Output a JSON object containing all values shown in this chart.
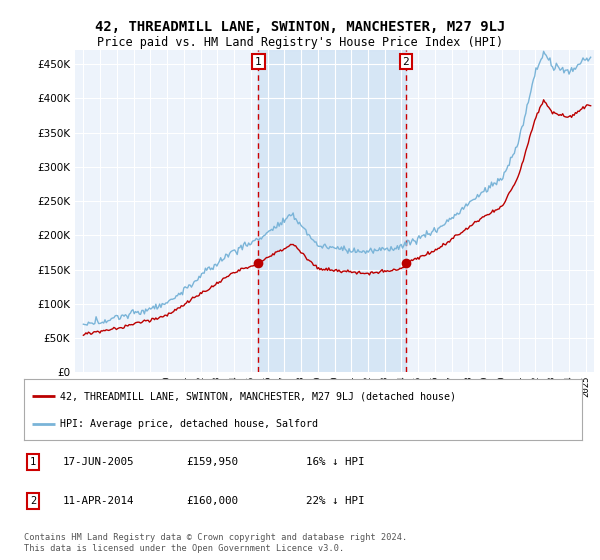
{
  "title": "42, THREADMILL LANE, SWINTON, MANCHESTER, M27 9LJ",
  "subtitle": "Price paid vs. HM Land Registry's House Price Index (HPI)",
  "footer": "Contains HM Land Registry data © Crown copyright and database right 2024.\nThis data is licensed under the Open Government Licence v3.0.",
  "legend_line1": "42, THREADMILL LANE, SWINTON, MANCHESTER, M27 9LJ (detached house)",
  "legend_line2": "HPI: Average price, detached house, Salford",
  "annotation1_date": "17-JUN-2005",
  "annotation1_price": "£159,950",
  "annotation1_hpi": "16% ↓ HPI",
  "annotation2_date": "11-APR-2014",
  "annotation2_price": "£160,000",
  "annotation2_hpi": "22% ↓ HPI",
  "sale1_year": 2005.46,
  "sale1_price": 159950,
  "sale2_year": 2014.27,
  "sale2_price": 160000,
  "hpi_color": "#7ab4d8",
  "price_color": "#bb0000",
  "dashed_color": "#cc0000",
  "shade_color": "#d4e5f5",
  "plot_bg": "#edf3fb",
  "grid_color": "#ffffff",
  "ylim": [
    0,
    470000
  ],
  "xlim_start": 1994.5,
  "xlim_end": 2025.5
}
